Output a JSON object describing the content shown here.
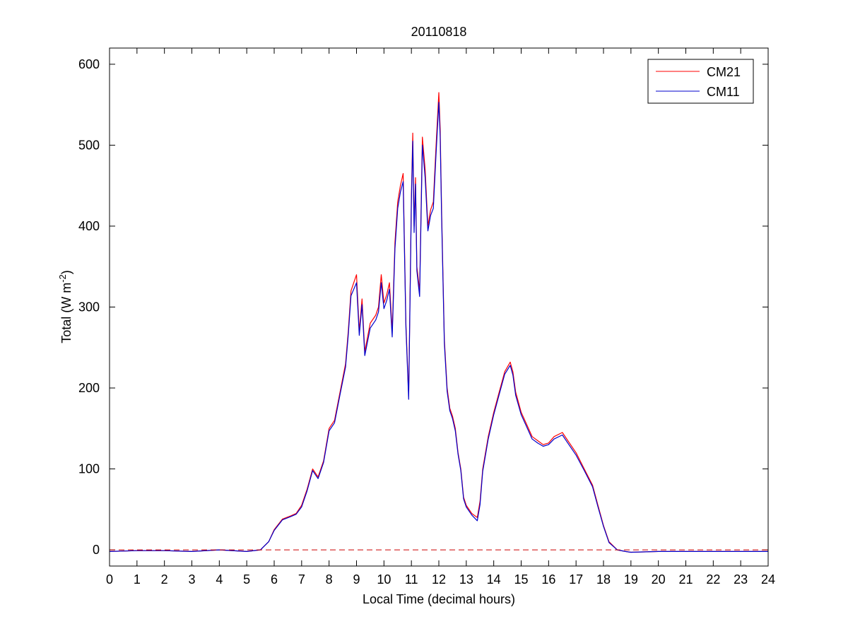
{
  "chart_data": {
    "type": "line",
    "title": "20110818",
    "xlabel": "Local Time (decimal hours)",
    "ylabel": {
      "main": "Total (W m",
      "superscript": "-2",
      "close": ")"
    },
    "xlim": [
      0,
      24
    ],
    "ylim": [
      -20,
      620
    ],
    "xticks": [
      0,
      1,
      2,
      3,
      4,
      5,
      6,
      7,
      8,
      9,
      10,
      11,
      12,
      13,
      14,
      15,
      16,
      17,
      18,
      19,
      20,
      21,
      22,
      23,
      24
    ],
    "yticks": [
      0,
      100,
      200,
      300,
      400,
      500,
      600
    ],
    "grid": false,
    "legend_location": "top-right",
    "reference_line": {
      "y": 0,
      "color": "#cc0000",
      "style": "dashed"
    },
    "series": [
      {
        "name": "CM21",
        "color": "#ff0000",
        "x": [
          0,
          1,
          2,
          3,
          4,
          5,
          5.5,
          5.8,
          6,
          6.3,
          6.6,
          6.8,
          7,
          7.2,
          7.4,
          7.6,
          7.8,
          8,
          8.2,
          8.4,
          8.6,
          8.7,
          8.8,
          8.9,
          9,
          9.1,
          9.2,
          9.3,
          9.5,
          9.7,
          9.8,
          9.9,
          10,
          10.1,
          10.2,
          10.3,
          10.4,
          10.5,
          10.6,
          10.7,
          10.8,
          10.9,
          11,
          11.05,
          11.1,
          11.15,
          11.2,
          11.3,
          11.4,
          11.5,
          11.6,
          11.7,
          11.8,
          11.9,
          12,
          12.05,
          12.1,
          12.2,
          12.3,
          12.4,
          12.5,
          12.6,
          12.7,
          12.8,
          12.9,
          13,
          13.2,
          13.4,
          13.5,
          13.6,
          13.8,
          14,
          14.2,
          14.4,
          14.6,
          14.7,
          14.8,
          15,
          15.2,
          15.4,
          15.6,
          15.8,
          16,
          16.2,
          16.5,
          16.7,
          17,
          17.3,
          17.6,
          17.8,
          18,
          18.2,
          18.5,
          18.8,
          19,
          20,
          21,
          22,
          23,
          24
        ],
        "y": [
          -2,
          -1,
          -1,
          -2,
          0,
          -2,
          0,
          10,
          25,
          38,
          42,
          45,
          55,
          75,
          100,
          90,
          110,
          150,
          160,
          195,
          230,
          270,
          320,
          330,
          340,
          270,
          310,
          245,
          280,
          290,
          300,
          340,
          305,
          315,
          330,
          270,
          380,
          430,
          450,
          465,
          280,
          190,
          440,
          515,
          400,
          460,
          350,
          320,
          510,
          470,
          400,
          420,
          430,
          500,
          565,
          520,
          420,
          260,
          200,
          175,
          165,
          150,
          120,
          100,
          65,
          55,
          45,
          40,
          60,
          100,
          140,
          170,
          195,
          220,
          232,
          220,
          195,
          170,
          155,
          140,
          135,
          130,
          132,
          140,
          145,
          135,
          120,
          100,
          80,
          55,
          30,
          10,
          0,
          -2,
          -3,
          -2,
          -2,
          -2,
          -2,
          -2
        ]
      },
      {
        "name": "CM11",
        "color": "#0000cc",
        "x": [
          0,
          1,
          2,
          3,
          4,
          5,
          5.5,
          5.8,
          6,
          6.3,
          6.6,
          6.8,
          7,
          7.2,
          7.4,
          7.6,
          7.8,
          8,
          8.2,
          8.4,
          8.6,
          8.7,
          8.8,
          8.9,
          9,
          9.1,
          9.2,
          9.3,
          9.5,
          9.7,
          9.8,
          9.9,
          10,
          10.1,
          10.2,
          10.3,
          10.4,
          10.5,
          10.6,
          10.7,
          10.8,
          10.9,
          11,
          11.05,
          11.1,
          11.15,
          11.2,
          11.3,
          11.4,
          11.5,
          11.6,
          11.7,
          11.8,
          11.9,
          12,
          12.05,
          12.1,
          12.2,
          12.3,
          12.4,
          12.5,
          12.6,
          12.7,
          12.8,
          12.9,
          13,
          13.2,
          13.4,
          13.5,
          13.6,
          13.8,
          14,
          14.2,
          14.4,
          14.6,
          14.7,
          14.8,
          15,
          15.2,
          15.4,
          15.6,
          15.8,
          16,
          16.2,
          16.5,
          16.7,
          17,
          17.3,
          17.6,
          17.8,
          18,
          18.2,
          18.5,
          18.8,
          19,
          20,
          21,
          22,
          23,
          24
        ],
        "y": [
          -2,
          -1,
          -1,
          -2,
          0,
          -2,
          0,
          10,
          24,
          37,
          41,
          44,
          53,
          73,
          98,
          88,
          108,
          147,
          157,
          192,
          226,
          265,
          314,
          322,
          330,
          265,
          303,
          240,
          274,
          284,
          294,
          330,
          298,
          308,
          322,
          263,
          372,
          422,
          442,
          455,
          275,
          186,
          432,
          505,
          392,
          452,
          345,
          313,
          500,
          460,
          394,
          413,
          422,
          490,
          553,
          510,
          412,
          255,
          196,
          172,
          162,
          147,
          118,
          98,
          63,
          53,
          43,
          36,
          56,
          97,
          137,
          167,
          192,
          217,
          228,
          216,
          191,
          167,
          152,
          137,
          132,
          128,
          130,
          137,
          142,
          132,
          117,
          98,
          78,
          53,
          29,
          9,
          0,
          -2,
          -3,
          -2,
          -2,
          -2,
          -2,
          -2
        ]
      }
    ]
  }
}
